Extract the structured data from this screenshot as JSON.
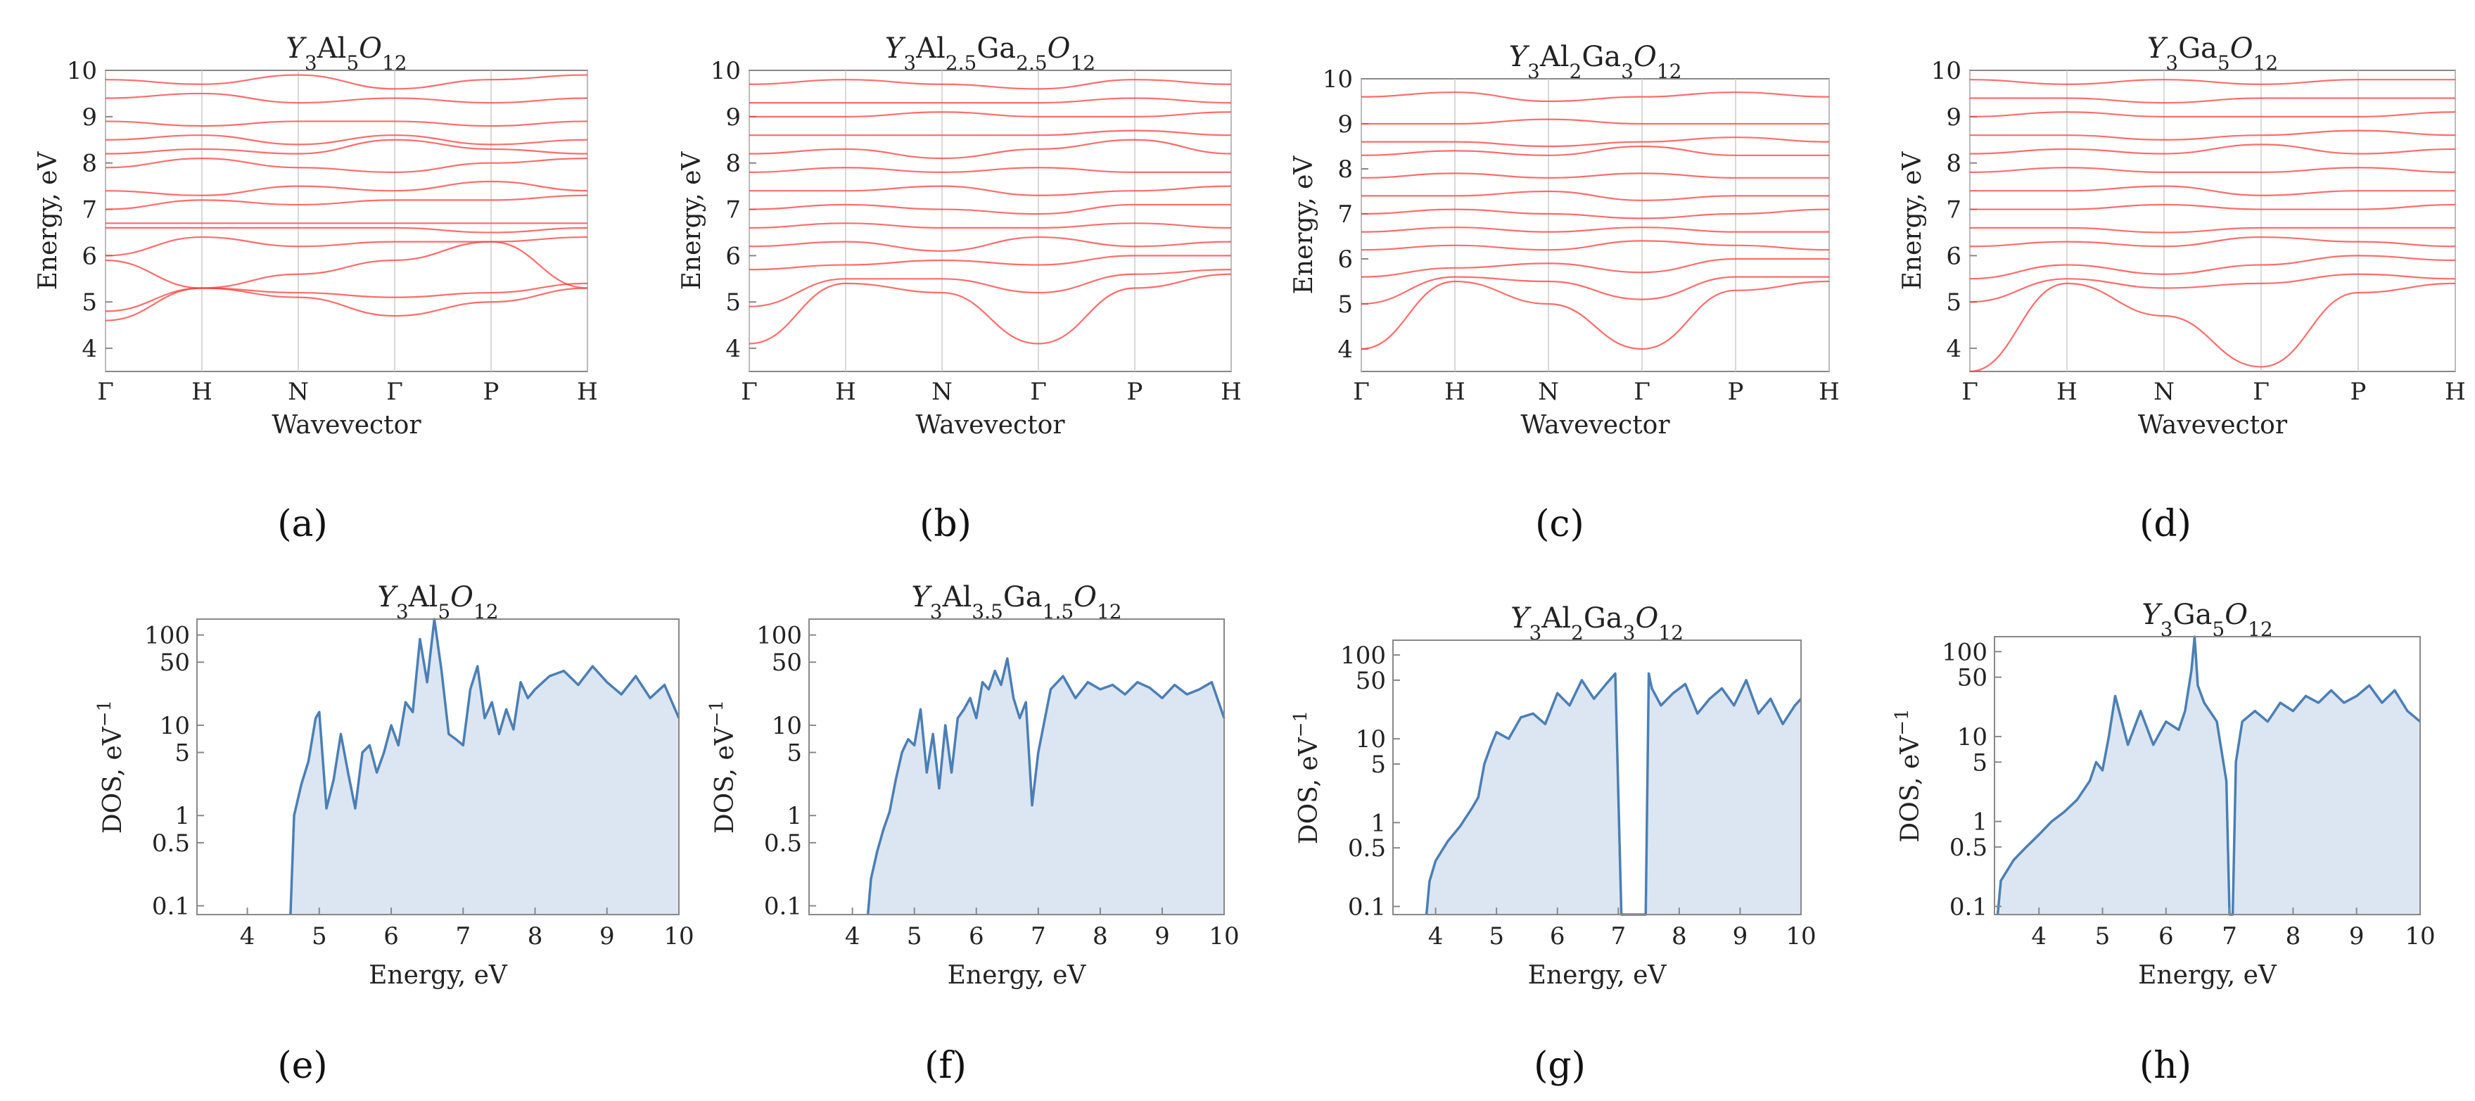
{
  "figure": {
    "panel_labels": [
      "(a)",
      "(b)",
      "(c)",
      "(d)",
      "(e)",
      "(f)",
      "(g)",
      "(h)"
    ]
  },
  "colors": {
    "band_line": "#ff3b3b",
    "dos_line": "#4a7fb5",
    "dos_fill": "#dce6f2",
    "frame": "#888888",
    "grid": "#cccccc"
  },
  "chart_data": [
    {
      "type": "line",
      "kind": "band-structure",
      "title": {
        "base": "Y",
        "s1": "3",
        "el1": "Al",
        "s2": "5",
        "el2": "O",
        "s3": "12",
        "el3": "",
        "s4": ""
      },
      "xlabel": "Wavevector",
      "ylabel": "Energy, eV",
      "x_ticks": [
        "Γ",
        "H",
        "N",
        "Γ",
        "P",
        "H"
      ],
      "ylim": [
        3.5,
        10
      ],
      "y_ticks": [
        4,
        5,
        6,
        7,
        8,
        9,
        10
      ],
      "bands": [
        [
          4.6,
          5.3,
          5.1,
          4.7,
          5.0,
          5.3
        ],
        [
          4.8,
          5.3,
          5.2,
          5.1,
          5.2,
          5.4
        ],
        [
          5.9,
          5.3,
          5.6,
          5.9,
          6.3,
          5.3
        ],
        [
          6.0,
          6.4,
          6.2,
          6.3,
          6.3,
          6.4
        ],
        [
          6.6,
          6.6,
          6.6,
          6.6,
          6.5,
          6.6
        ],
        [
          6.7,
          6.7,
          6.7,
          6.7,
          6.7,
          6.7
        ],
        [
          7.0,
          7.2,
          7.1,
          7.2,
          7.2,
          7.3
        ],
        [
          7.4,
          7.3,
          7.5,
          7.4,
          7.6,
          7.4
        ],
        [
          7.9,
          8.1,
          7.9,
          7.8,
          8.0,
          8.1
        ],
        [
          8.2,
          8.3,
          8.2,
          8.5,
          8.3,
          8.2
        ],
        [
          8.5,
          8.6,
          8.4,
          8.6,
          8.4,
          8.5
        ],
        [
          8.9,
          8.8,
          8.9,
          8.9,
          8.8,
          8.9
        ],
        [
          9.4,
          9.5,
          9.3,
          9.4,
          9.3,
          9.4
        ],
        [
          9.8,
          9.7,
          9.9,
          9.6,
          9.8,
          9.9
        ]
      ]
    },
    {
      "type": "line",
      "kind": "band-structure",
      "title": {
        "base": "Y",
        "s1": "3",
        "el1": "Al",
        "s2": "2.5",
        "el2": "Ga",
        "s3": "2.5",
        "el3": "O",
        "s4": "12"
      },
      "xlabel": "Wavevector",
      "ylabel": "Energy, eV",
      "x_ticks": [
        "Γ",
        "H",
        "N",
        "Γ",
        "P",
        "H"
      ],
      "ylim": [
        3.5,
        10
      ],
      "y_ticks": [
        4,
        5,
        6,
        7,
        8,
        9,
        10
      ],
      "bands": [
        [
          4.1,
          5.4,
          5.2,
          4.1,
          5.3,
          5.6
        ],
        [
          4.9,
          5.5,
          5.5,
          5.2,
          5.6,
          5.7
        ],
        [
          5.7,
          5.8,
          5.9,
          5.8,
          6.0,
          6.0
        ],
        [
          6.2,
          6.3,
          6.1,
          6.4,
          6.2,
          6.3
        ],
        [
          6.6,
          6.7,
          6.6,
          6.6,
          6.7,
          6.6
        ],
        [
          7.0,
          7.1,
          7.0,
          6.9,
          7.1,
          7.1
        ],
        [
          7.4,
          7.4,
          7.5,
          7.3,
          7.4,
          7.5
        ],
        [
          7.8,
          7.9,
          7.8,
          7.9,
          7.8,
          7.8
        ],
        [
          8.2,
          8.3,
          8.1,
          8.3,
          8.5,
          8.2
        ],
        [
          8.6,
          8.6,
          8.6,
          8.6,
          8.7,
          8.6
        ],
        [
          9.0,
          9.0,
          9.1,
          9.0,
          9.0,
          9.1
        ],
        [
          9.3,
          9.3,
          9.3,
          9.3,
          9.4,
          9.3
        ],
        [
          9.7,
          9.8,
          9.7,
          9.6,
          9.8,
          9.7
        ]
      ]
    },
    {
      "type": "line",
      "kind": "band-structure",
      "title": {
        "base": "Y",
        "s1": "3",
        "el1": "Al",
        "s2": "2",
        "el2": "Ga",
        "s3": "3",
        "el3": "O",
        "s4": "12"
      },
      "xlabel": "Wavevector",
      "ylabel": "Energy, eV",
      "x_ticks": [
        "Γ",
        "H",
        "N",
        "Γ",
        "P",
        "H"
      ],
      "ylim": [
        3.5,
        10
      ],
      "y_ticks": [
        4,
        5,
        6,
        7,
        8,
        9,
        10
      ],
      "bands": [
        [
          4.0,
          5.5,
          5.0,
          4.0,
          5.3,
          5.5
        ],
        [
          5.0,
          5.6,
          5.5,
          5.1,
          5.6,
          5.6
        ],
        [
          5.6,
          5.8,
          5.9,
          5.7,
          6.0,
          6.0
        ],
        [
          6.2,
          6.3,
          6.2,
          6.4,
          6.3,
          6.2
        ],
        [
          6.6,
          6.7,
          6.6,
          6.7,
          6.6,
          6.6
        ],
        [
          7.0,
          7.1,
          7.0,
          6.9,
          7.0,
          7.1
        ],
        [
          7.4,
          7.4,
          7.5,
          7.3,
          7.4,
          7.4
        ],
        [
          7.8,
          7.9,
          7.8,
          7.9,
          7.8,
          7.8
        ],
        [
          8.3,
          8.4,
          8.3,
          8.5,
          8.3,
          8.3
        ],
        [
          8.6,
          8.6,
          8.5,
          8.6,
          8.7,
          8.6
        ],
        [
          9.0,
          9.0,
          9.1,
          9.0,
          9.0,
          9.0
        ],
        [
          9.6,
          9.7,
          9.5,
          9.6,
          9.7,
          9.6
        ]
      ]
    },
    {
      "type": "line",
      "kind": "band-structure",
      "title": {
        "base": "Y",
        "s1": "3",
        "el1": "Ga",
        "s2": "5",
        "el2": "O",
        "s3": "12",
        "el3": "",
        "s4": ""
      },
      "xlabel": "Wavevector",
      "ylabel": "Energy, eV",
      "x_ticks": [
        "Γ",
        "H",
        "N",
        "Γ",
        "P",
        "H"
      ],
      "ylim": [
        3.5,
        10
      ],
      "y_ticks": [
        4,
        5,
        6,
        7,
        8,
        9,
        10
      ],
      "bands": [
        [
          3.5,
          5.4,
          4.7,
          3.6,
          5.2,
          5.4
        ],
        [
          5.0,
          5.5,
          5.3,
          5.4,
          5.6,
          5.5
        ],
        [
          5.5,
          5.8,
          5.6,
          5.8,
          6.0,
          5.9
        ],
        [
          6.2,
          6.3,
          6.2,
          6.4,
          6.3,
          6.2
        ],
        [
          6.6,
          6.6,
          6.5,
          6.6,
          6.6,
          6.6
        ],
        [
          7.0,
          7.0,
          7.1,
          7.0,
          7.0,
          7.1
        ],
        [
          7.4,
          7.4,
          7.5,
          7.3,
          7.4,
          7.4
        ],
        [
          7.8,
          7.9,
          7.8,
          7.8,
          7.9,
          7.8
        ],
        [
          8.2,
          8.3,
          8.2,
          8.4,
          8.2,
          8.3
        ],
        [
          8.6,
          8.6,
          8.5,
          8.6,
          8.7,
          8.6
        ],
        [
          9.0,
          9.1,
          9.0,
          9.0,
          9.0,
          9.1
        ],
        [
          9.4,
          9.4,
          9.3,
          9.4,
          9.4,
          9.4
        ],
        [
          9.8,
          9.7,
          9.8,
          9.7,
          9.8,
          9.8
        ]
      ]
    },
    {
      "type": "area",
      "kind": "density-of-states",
      "title": {
        "base": "Y",
        "s1": "3",
        "el1": "Al",
        "s2": "5",
        "el2": "O",
        "s3": "12",
        "el3": "",
        "s4": ""
      },
      "xlabel": "Energy, eV",
      "ylabel": "DOS, eV",
      "ylabel_sup": "−1",
      "y_scale": "log",
      "xlim": [
        3.3,
        10
      ],
      "ylim": [
        0.08,
        150
      ],
      "x_ticks": [
        4,
        5,
        6,
        7,
        8,
        9,
        10
      ],
      "y_ticks": [
        "0.1",
        "0.5",
        "1",
        "5",
        "10",
        "50",
        "100"
      ],
      "x": [
        4.6,
        4.65,
        4.75,
        4.85,
        4.95,
        5.0,
        5.1,
        5.2,
        5.3,
        5.4,
        5.5,
        5.6,
        5.7,
        5.8,
        5.9,
        6.0,
        6.1,
        6.2,
        6.3,
        6.4,
        6.5,
        6.6,
        6.7,
        6.8,
        6.9,
        7.0,
        7.1,
        7.2,
        7.3,
        7.4,
        7.5,
        7.6,
        7.7,
        7.8,
        7.9,
        8.0,
        8.2,
        8.4,
        8.6,
        8.8,
        9.0,
        9.2,
        9.4,
        9.6,
        9.8,
        10.0
      ],
      "y": [
        0.08,
        1.0,
        2.2,
        4.0,
        12,
        14,
        1.2,
        2.5,
        8.0,
        3.0,
        1.2,
        5.0,
        6.0,
        3.0,
        5.0,
        10,
        6.0,
        18,
        14,
        90,
        30,
        150,
        40,
        8.0,
        7.0,
        6.0,
        25,
        45,
        12,
        18,
        8.0,
        15,
        9.0,
        30,
        20,
        25,
        35,
        40,
        28,
        45,
        30,
        22,
        35,
        20,
        28,
        12
      ]
    },
    {
      "type": "area",
      "kind": "density-of-states",
      "title": {
        "base": "Y",
        "s1": "3",
        "el1": "Al",
        "s2": "3.5",
        "el2": "Ga",
        "s3": "1.5",
        "el3": "O",
        "s4": "12"
      },
      "xlabel": "Energy, eV",
      "ylabel": "DOS, eV",
      "ylabel_sup": "−1",
      "y_scale": "log",
      "xlim": [
        3.3,
        10
      ],
      "ylim": [
        0.08,
        150
      ],
      "x_ticks": [
        4,
        5,
        6,
        7,
        8,
        9,
        10
      ],
      "y_ticks": [
        "0.1",
        "0.5",
        "1",
        "5",
        "10",
        "50",
        "100"
      ],
      "x": [
        4.25,
        4.3,
        4.4,
        4.5,
        4.6,
        4.7,
        4.8,
        4.9,
        5.0,
        5.1,
        5.2,
        5.3,
        5.4,
        5.5,
        5.6,
        5.7,
        5.8,
        5.9,
        6.0,
        6.1,
        6.2,
        6.3,
        6.4,
        6.5,
        6.6,
        6.7,
        6.8,
        6.9,
        7.0,
        7.2,
        7.4,
        7.6,
        7.8,
        8.0,
        8.2,
        8.4,
        8.6,
        8.8,
        9.0,
        9.2,
        9.4,
        9.6,
        9.8,
        10.0
      ],
      "y": [
        0.08,
        0.2,
        0.4,
        0.7,
        1.1,
        2.5,
        5.0,
        7.0,
        6.0,
        15,
        3.0,
        8.0,
        2.0,
        10,
        3.0,
        12,
        15,
        20,
        12,
        30,
        25,
        40,
        28,
        55,
        20,
        12,
        18,
        1.3,
        5.0,
        25,
        35,
        20,
        30,
        25,
        28,
        22,
        30,
        26,
        20,
        28,
        22,
        25,
        30,
        12
      ]
    },
    {
      "type": "area",
      "kind": "density-of-states",
      "title": {
        "base": "Y",
        "s1": "3",
        "el1": "Al",
        "s2": "2",
        "el2": "Ga",
        "s3": "3",
        "el3": "O",
        "s4": "12"
      },
      "xlabel": "Energy, eV",
      "ylabel": "DOS, eV",
      "ylabel_sup": "−1",
      "y_scale": "log",
      "xlim": [
        3.3,
        10
      ],
      "ylim": [
        0.08,
        150
      ],
      "x_ticks": [
        4,
        5,
        6,
        7,
        8,
        9,
        10
      ],
      "y_ticks": [
        "0.1",
        "0.5",
        "1",
        "5",
        "10",
        "50",
        "100"
      ],
      "x": [
        3.85,
        3.9,
        4.0,
        4.2,
        4.4,
        4.6,
        4.7,
        4.8,
        4.9,
        5.0,
        5.2,
        5.4,
        5.6,
        5.8,
        6.0,
        6.2,
        6.4,
        6.6,
        6.8,
        6.95,
        7.05,
        7.1,
        7.45,
        7.5,
        7.55,
        7.7,
        7.9,
        8.1,
        8.3,
        8.5,
        8.7,
        8.9,
        9.1,
        9.3,
        9.5,
        9.7,
        9.9,
        10.0
      ],
      "y": [
        0.08,
        0.2,
        0.35,
        0.6,
        0.9,
        1.5,
        2.0,
        5.0,
        8.0,
        12,
        10,
        18,
        20,
        15,
        35,
        25,
        50,
        30,
        45,
        60,
        0.08,
        0.08,
        0.08,
        60,
        40,
        25,
        35,
        45,
        20,
        30,
        40,
        25,
        50,
        20,
        30,
        15,
        25,
        30
      ]
    },
    {
      "type": "area",
      "kind": "density-of-states",
      "title": {
        "base": "Y",
        "s1": "3",
        "el1": "Ga",
        "s2": "5",
        "el2": "O",
        "s3": "12",
        "el3": "",
        "s4": ""
      },
      "xlabel": "Energy, eV",
      "ylabel": "DOS, eV",
      "ylabel_sup": "−1",
      "y_scale": "log",
      "xlim": [
        3.3,
        10
      ],
      "ylim": [
        0.08,
        150
      ],
      "x_ticks": [
        4,
        5,
        6,
        7,
        8,
        9,
        10
      ],
      "y_ticks": [
        "0.1",
        "0.5",
        "1",
        "5",
        "10",
        "50",
        "100"
      ],
      "x": [
        3.35,
        3.4,
        3.6,
        3.8,
        4.0,
        4.2,
        4.4,
        4.6,
        4.8,
        4.9,
        5.0,
        5.1,
        5.2,
        5.4,
        5.6,
        5.8,
        6.0,
        6.2,
        6.3,
        6.4,
        6.45,
        6.5,
        6.6,
        6.8,
        6.95,
        7.0,
        7.05,
        7.1,
        7.2,
        7.4,
        7.6,
        7.8,
        8.0,
        8.2,
        8.4,
        8.6,
        8.8,
        9.0,
        9.2,
        9.4,
        9.6,
        9.8,
        10.0
      ],
      "y": [
        0.08,
        0.2,
        0.35,
        0.5,
        0.7,
        1.0,
        1.3,
        1.8,
        3.0,
        5.0,
        4.0,
        10,
        30,
        8.0,
        20,
        8.0,
        15,
        12,
        20,
        60,
        150,
        40,
        25,
        15,
        3.0,
        0.08,
        0.08,
        5.0,
        15,
        20,
        15,
        25,
        20,
        30,
        25,
        35,
        25,
        30,
        40,
        25,
        35,
        20,
        15
      ]
    }
  ]
}
